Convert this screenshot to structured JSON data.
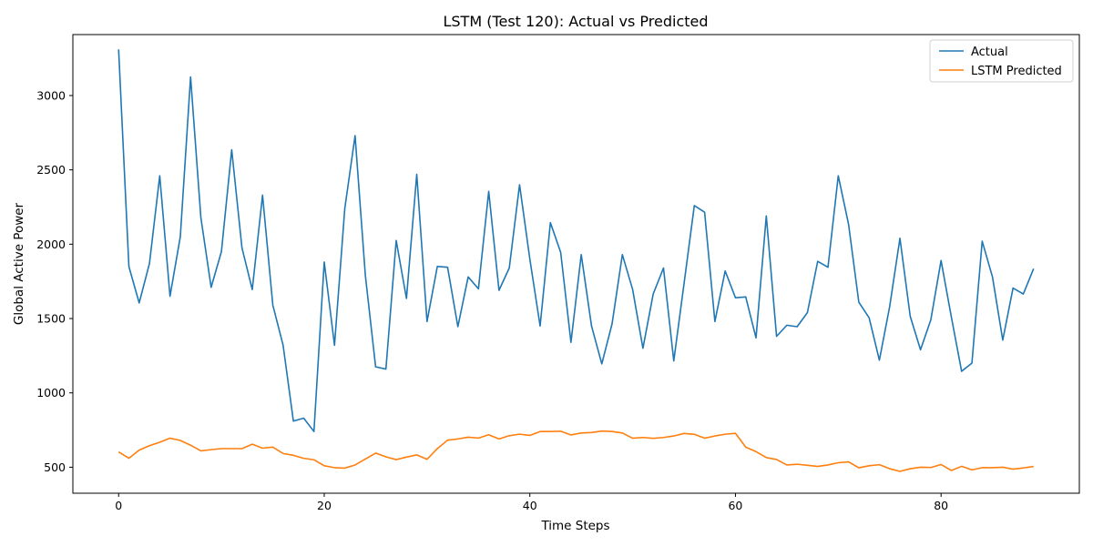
{
  "chart_data": {
    "type": "line",
    "title": "LSTM (Test 120): Actual vs Predicted",
    "xlabel": "Time Steps",
    "ylabel": "Global Active Power",
    "xlim": [
      -4.45,
      93.45
    ],
    "ylim": [
      325,
      3410
    ],
    "xticks": [
      0,
      20,
      40,
      60,
      80
    ],
    "yticks": [
      500,
      1000,
      1500,
      2000,
      2500,
      3000
    ],
    "grid": false,
    "legend_position": "top-right",
    "x": [
      0,
      1,
      2,
      3,
      4,
      5,
      6,
      7,
      8,
      9,
      10,
      11,
      12,
      13,
      14,
      15,
      16,
      17,
      18,
      19,
      20,
      21,
      22,
      23,
      24,
      25,
      26,
      27,
      28,
      29,
      30,
      31,
      32,
      33,
      34,
      35,
      36,
      37,
      38,
      39,
      40,
      41,
      42,
      43,
      44,
      45,
      46,
      47,
      48,
      49,
      50,
      51,
      52,
      53,
      54,
      55,
      56,
      57,
      58,
      59,
      60,
      61,
      62,
      63,
      64,
      65,
      66,
      67,
      68,
      69,
      70,
      71,
      72,
      73,
      74,
      75,
      76,
      77,
      78,
      79,
      80,
      81,
      82,
      83,
      84,
      85,
      86,
      87,
      88,
      89
    ],
    "series": [
      {
        "name": "Actual",
        "color": "#1f77b4",
        "values": [
          3310,
          1850,
          1605,
          1870,
          2460,
          1650,
          2050,
          3125,
          2180,
          1710,
          1950,
          2635,
          1975,
          1695,
          2330,
          1590,
          1320,
          810,
          830,
          740,
          1880,
          1320,
          2240,
          2730,
          1790,
          1175,
          1160,
          2025,
          1635,
          2470,
          1480,
          1850,
          1845,
          1445,
          1780,
          1700,
          2355,
          1690,
          1840,
          2400,
          1900,
          1450,
          2145,
          1945,
          1340,
          1930,
          1450,
          1195,
          1465,
          1930,
          1695,
          1300,
          1665,
          1840,
          1215,
          1735,
          2260,
          2215,
          1480,
          1820,
          1640,
          1645,
          1370,
          2190,
          1380,
          1455,
          1445,
          1540,
          1885,
          1845,
          2460,
          2135,
          1610,
          1505,
          1220,
          1580,
          2040,
          1515,
          1290,
          1490,
          1890,
          1510,
          1145,
          1200,
          2020,
          1780,
          1355,
          1705,
          1665,
          1835
        ]
      },
      {
        "name": "LSTM Predicted",
        "color": "#ff7f0e",
        "values": [
          603,
          560,
          615,
          645,
          668,
          695,
          680,
          648,
          610,
          618,
          625,
          625,
          625,
          655,
          628,
          635,
          592,
          580,
          560,
          550,
          510,
          497,
          494,
          515,
          555,
          595,
          570,
          551,
          568,
          583,
          553,
          625,
          682,
          690,
          702,
          696,
          718,
          690,
          712,
          722,
          714,
          740,
          740,
          742,
          717,
          730,
          733,
          743,
          740,
          730,
          695,
          700,
          694,
          700,
          710,
          727,
          721,
          695,
          710,
          722,
          728,
          635,
          605,
          565,
          552,
          515,
          520,
          513,
          505,
          515,
          530,
          536,
          496,
          510,
          517,
          490,
          472,
          490,
          500,
          498,
          518,
          478,
          506,
          482,
          497,
          497,
          500,
          487,
          495,
          505
        ]
      }
    ]
  }
}
